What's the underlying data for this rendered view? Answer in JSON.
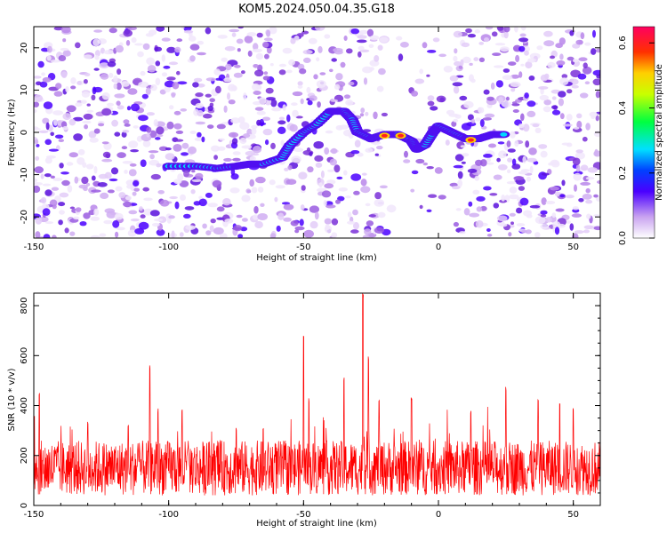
{
  "chart_data": [
    {
      "type": "heatmap",
      "title": "KOM5.2024.050.04.35.G18",
      "xlabel": "Height of straight line (km)",
      "ylabel": "Frequency (Hz)",
      "xlim": [
        -150,
        60
      ],
      "ylim": [
        -25,
        25
      ],
      "xticks": [
        "-150",
        "-100",
        "-50",
        "0",
        "50"
      ],
      "yticks": [
        "-20",
        "-10",
        "0",
        "10",
        "20"
      ],
      "colorbar": {
        "label": "Normalized spectral amplitude",
        "range": [
          0,
          0.65
        ],
        "ticks": [
          "0.0",
          "0.2",
          "0.4",
          "0.6"
        ]
      },
      "signal_trace": [
        {
          "x": -100,
          "y": -8
        },
        {
          "x": -90,
          "y": -8
        },
        {
          "x": -82,
          "y": -8.5
        },
        {
          "x": -75,
          "y": -8
        },
        {
          "x": -70,
          "y": -7.5
        },
        {
          "x": -65,
          "y": -7.5
        },
        {
          "x": -58,
          "y": -6
        },
        {
          "x": -55,
          "y": -3
        },
        {
          "x": -50,
          "y": 0
        },
        {
          "x": -45,
          "y": 2
        },
        {
          "x": -40,
          "y": 5
        },
        {
          "x": -35,
          "y": 5
        },
        {
          "x": -32,
          "y": 3
        },
        {
          "x": -30,
          "y": 0
        },
        {
          "x": -25,
          "y": -1.5
        },
        {
          "x": -20,
          "y": -0.5
        },
        {
          "x": -15,
          "y": -0.5
        },
        {
          "x": -10,
          "y": -2
        },
        {
          "x": -8,
          "y": -4
        },
        {
          "x": -5,
          "y": -3
        },
        {
          "x": -2,
          "y": 0
        },
        {
          "x": 0,
          "y": 1.5
        },
        {
          "x": 5,
          "y": 0
        },
        {
          "x": 10,
          "y": -1.5
        },
        {
          "x": 15,
          "y": -1.5
        },
        {
          "x": 20,
          "y": -0.5
        },
        {
          "x": 25,
          "y": -0.5
        }
      ],
      "signal_peaks": [
        {
          "x": -20,
          "y": -0.8,
          "amplitude": 0.65
        },
        {
          "x": -14,
          "y": -0.8,
          "amplitude": 0.6
        },
        {
          "x": 12,
          "y": -1.8,
          "amplitude": 0.55
        }
      ]
    },
    {
      "type": "line",
      "xlabel": "Height of straight line (km)",
      "ylabel": "SNR (10 * v/v)",
      "xlim": [
        -150,
        60
      ],
      "ylim": [
        0,
        850
      ],
      "xticks": [
        "-150",
        "-100",
        "-50",
        "0",
        "50"
      ],
      "yticks": [
        "0",
        "200",
        "400",
        "600",
        "800"
      ],
      "series_color": "#ff0000",
      "baseline": {
        "mean": 150,
        "spread": 110
      },
      "peaks": [
        {
          "x": -148,
          "y": 450
        },
        {
          "x": -130,
          "y": 345
        },
        {
          "x": -115,
          "y": 335
        },
        {
          "x": -107,
          "y": 565
        },
        {
          "x": -104,
          "y": 390
        },
        {
          "x": -95,
          "y": 390
        },
        {
          "x": -75,
          "y": 320
        },
        {
          "x": -65,
          "y": 320
        },
        {
          "x": -50,
          "y": 680
        },
        {
          "x": -48,
          "y": 430
        },
        {
          "x": -35,
          "y": 520
        },
        {
          "x": -28,
          "y": 850
        },
        {
          "x": -26,
          "y": 600
        },
        {
          "x": -22,
          "y": 430
        },
        {
          "x": -10,
          "y": 440
        },
        {
          "x": 12,
          "y": 380
        },
        {
          "x": 25,
          "y": 480
        },
        {
          "x": 37,
          "y": 440
        },
        {
          "x": 45,
          "y": 410
        },
        {
          "x": 50,
          "y": 390
        }
      ]
    }
  ]
}
